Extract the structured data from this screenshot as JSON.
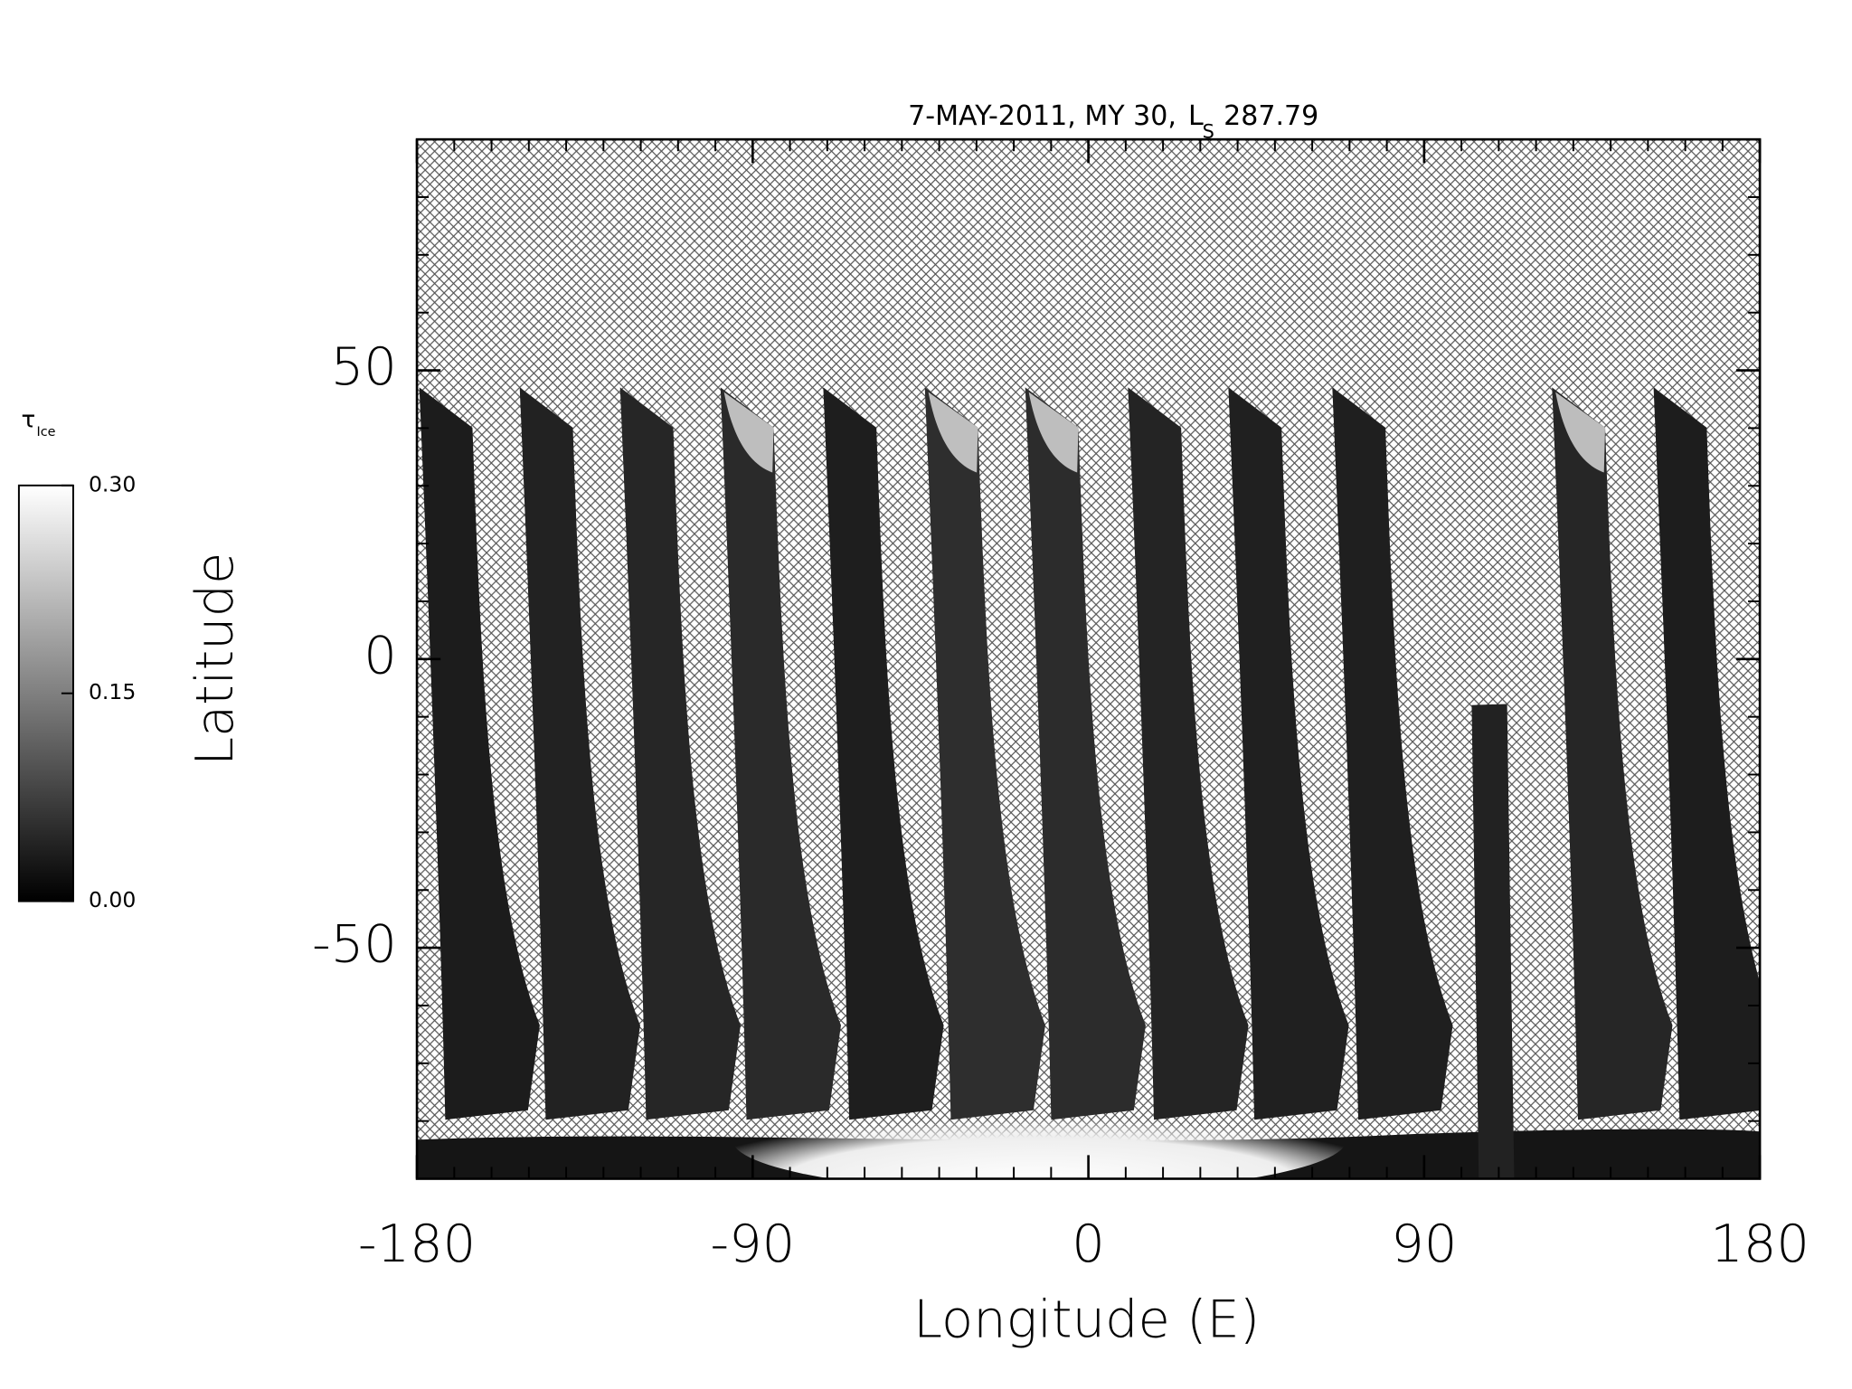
{
  "chart_data": {
    "type": "map",
    "title": "7-MAY-2011, MY 30,",
    "title_symbol": "L",
    "title_symbol_subscript": "S",
    "title_value": "287.79",
    "x_label": "Longitude (E)",
    "y_label": "Latitude",
    "xlim": [
      -180,
      180
    ],
    "xticks": [
      -180,
      -90,
      0,
      90,
      180
    ],
    "ylim": [
      -90,
      90
    ],
    "yticks": [
      -50,
      0,
      50
    ],
    "minor_tick_step": 10,
    "colorbar": {
      "label": "τ",
      "label_subscript": "Ice",
      "clim": [
        0,
        0.3
      ],
      "ticks": [
        {
          "value": 0,
          "label": "0.00"
        },
        {
          "value": 0.15,
          "label": "0.15"
        },
        {
          "value": 0.3,
          "label": "0.30"
        }
      ],
      "colors": [
        "#000000",
        "#ffffff"
      ]
    }
  }
}
